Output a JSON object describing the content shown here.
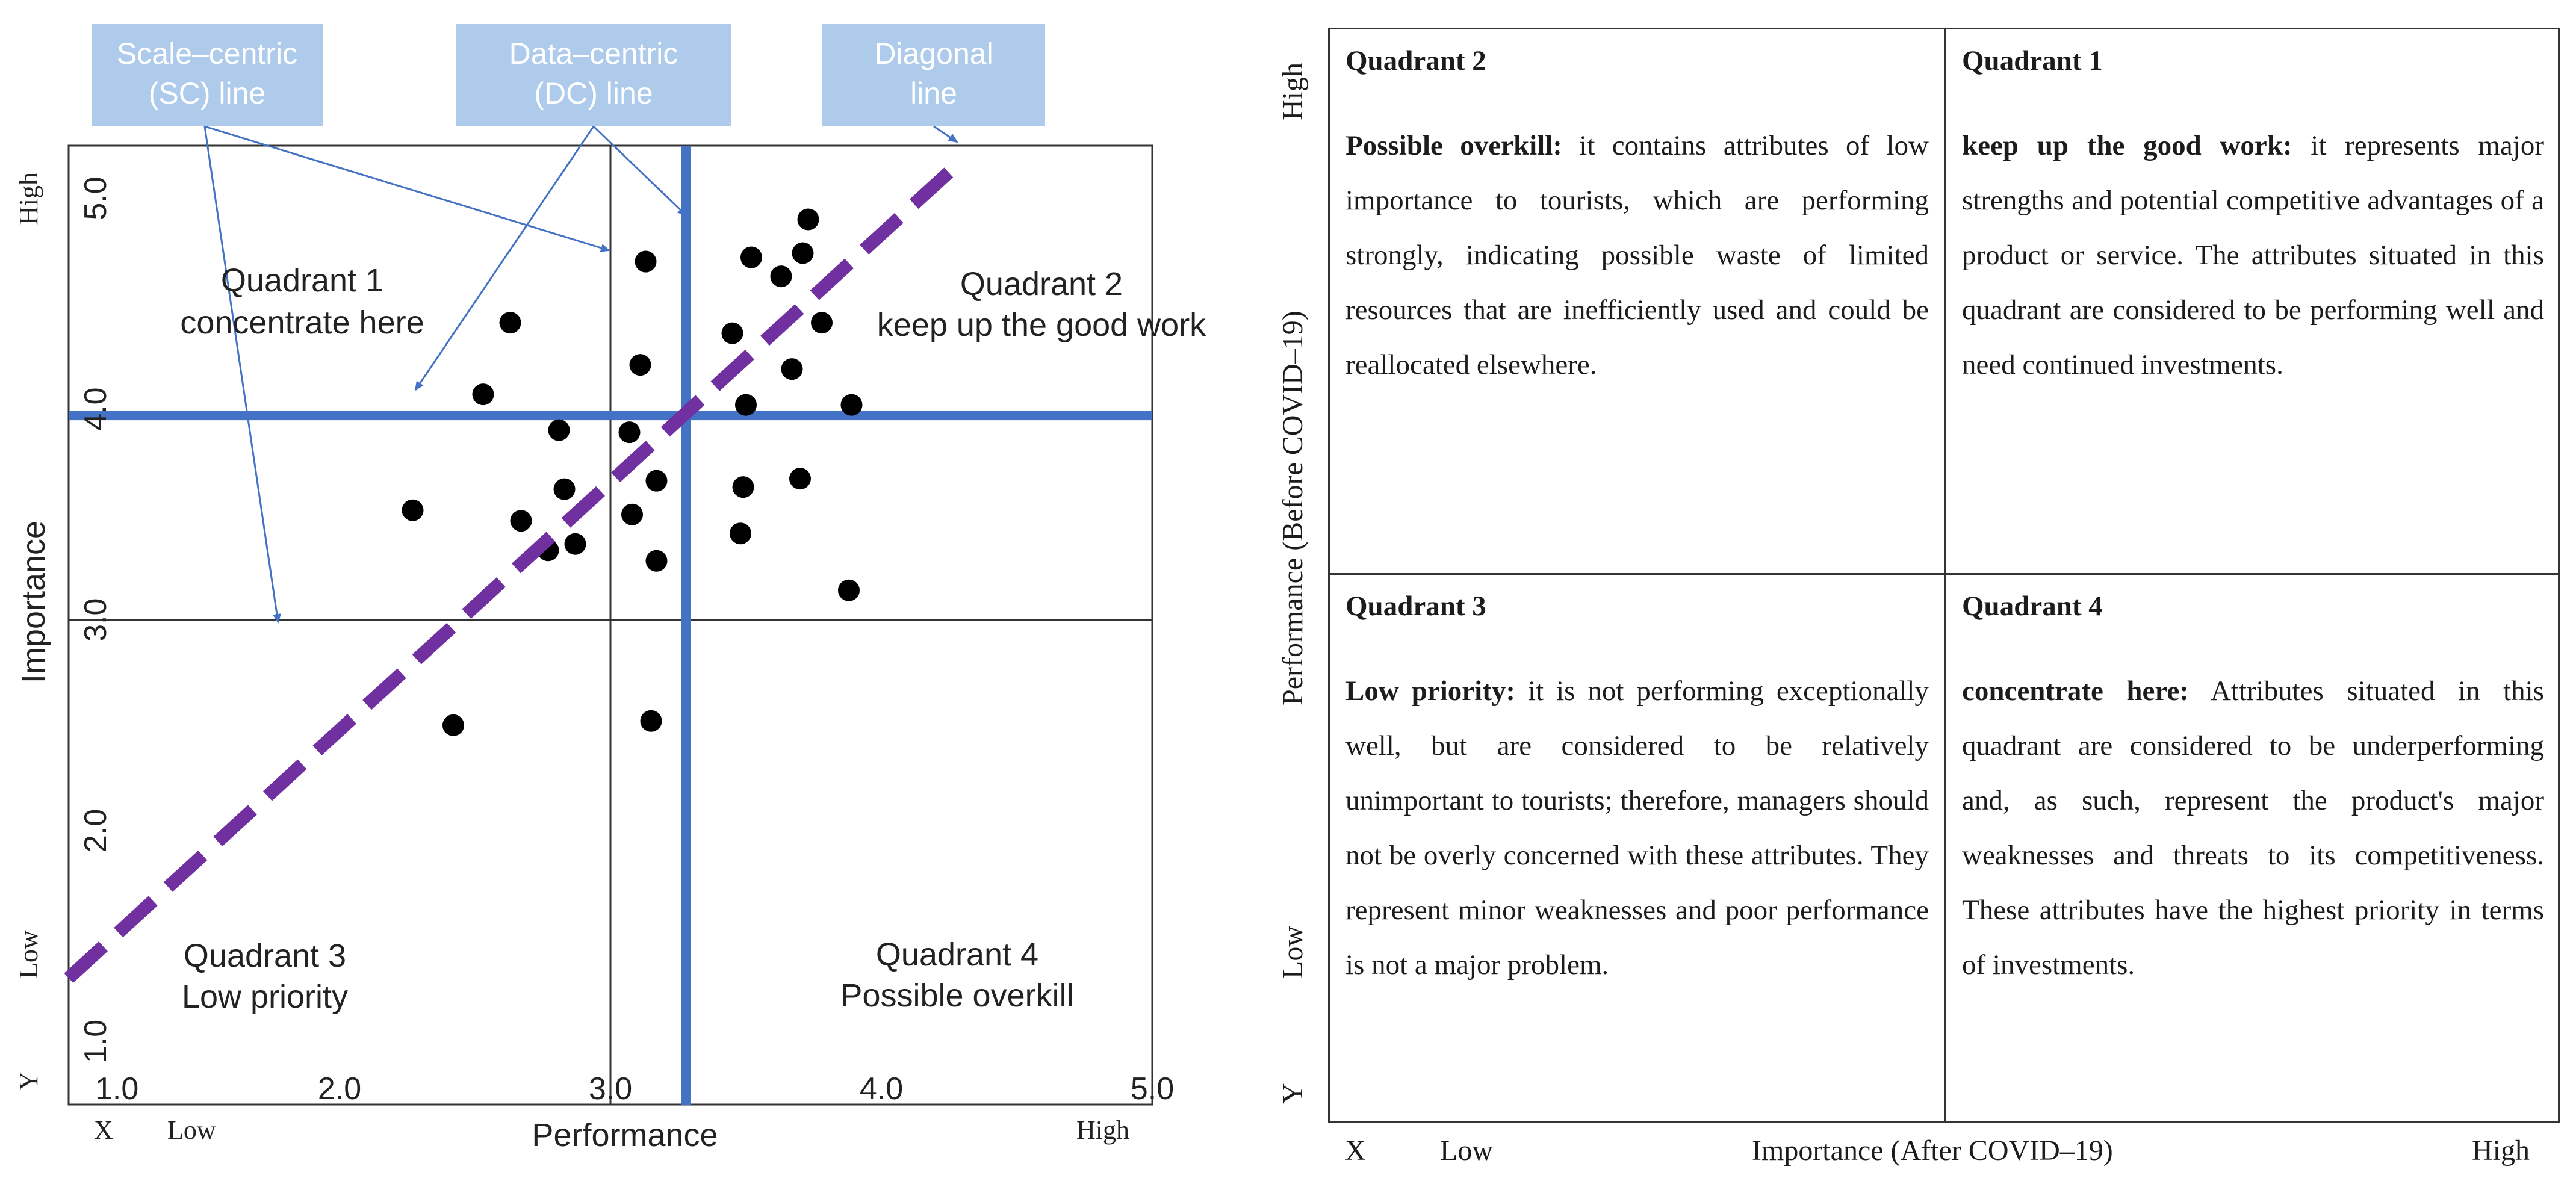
{
  "left_figure": {
    "callouts": {
      "sc_line": [
        "Scale–centric",
        "(SC) line"
      ],
      "dc_line": [
        "Data–centric",
        "(DC) line"
      ],
      "diagonal": [
        "Diagonal",
        "line"
      ]
    },
    "callout_color": "#aecbeb",
    "quadrants": {
      "q1": [
        "Quadrant 1",
        "concentrate here"
      ],
      "q2": [
        "Quadrant 2",
        "keep up the good work"
      ],
      "q3": [
        "Quadrant 3",
        "Low priority"
      ],
      "q4": [
        "Quadrant 4",
        "Possible overkill"
      ]
    },
    "y_axis": {
      "title": "Importance",
      "high": "High",
      "low": "Low",
      "letter": "Y"
    },
    "x_axis": {
      "title": "Performance",
      "high": "High",
      "low": "Low",
      "letter": "X"
    },
    "line_colors": {
      "dc": "#4472c4",
      "diagonal": "#7030a0",
      "sc": "#333333"
    }
  },
  "chart_data": {
    "type": "scatter",
    "title": "",
    "xlabel": "Performance",
    "ylabel": "Importance",
    "xlim": [
      1.0,
      5.0
    ],
    "ylim": [
      0.7,
      5.25
    ],
    "xticks": [
      "1.0",
      "2.0",
      "3.0",
      "4.0",
      "5.0"
    ],
    "yticks": [
      "1.0",
      "2.0",
      "3.0",
      "4.0",
      "5.0"
    ],
    "scale_centric": {
      "x": 3.0,
      "y": 3.0
    },
    "data_centric": {
      "x": 3.28,
      "y": 3.97
    },
    "diagonal": {
      "from": [
        1.0,
        1.3
      ],
      "to": [
        4.28,
        5.16
      ]
    },
    "points": [
      {
        "x": 2.27,
        "y": 3.52
      },
      {
        "x": 2.42,
        "y": 2.5
      },
      {
        "x": 2.53,
        "y": 4.07
      },
      {
        "x": 2.67,
        "y": 3.47
      },
      {
        "x": 2.63,
        "y": 4.41
      },
      {
        "x": 2.77,
        "y": 3.33
      },
      {
        "x": 2.81,
        "y": 3.9
      },
      {
        "x": 2.83,
        "y": 3.62
      },
      {
        "x": 2.87,
        "y": 3.36
      },
      {
        "x": 3.07,
        "y": 3.89
      },
      {
        "x": 3.08,
        "y": 3.5
      },
      {
        "x": 3.11,
        "y": 4.21
      },
      {
        "x": 3.13,
        "y": 4.7
      },
      {
        "x": 3.15,
        "y": 2.52
      },
      {
        "x": 3.17,
        "y": 3.66
      },
      {
        "x": 3.17,
        "y": 3.28
      },
      {
        "x": 3.45,
        "y": 4.36
      },
      {
        "x": 3.48,
        "y": 3.41
      },
      {
        "x": 3.49,
        "y": 3.63
      },
      {
        "x": 3.5,
        "y": 4.02
      },
      {
        "x": 3.52,
        "y": 4.72
      },
      {
        "x": 3.63,
        "y": 4.63
      },
      {
        "x": 3.67,
        "y": 4.19
      },
      {
        "x": 3.7,
        "y": 3.67
      },
      {
        "x": 3.71,
        "y": 4.74
      },
      {
        "x": 3.73,
        "y": 4.9
      },
      {
        "x": 3.78,
        "y": 4.41
      },
      {
        "x": 3.88,
        "y": 3.14
      },
      {
        "x": 3.89,
        "y": 4.02
      }
    ]
  },
  "table": {
    "q2": {
      "title": "Quadrant 2",
      "lead": "Possible overkill:",
      "body": " it contains attributes of low importance to tourists, which are performing strongly, indicating possible waste of limited resources that are inefficiently used and could be reallocated elsewhere."
    },
    "q1": {
      "title": "Quadrant 1",
      "lead": "keep up the good work:",
      "body": " it represents major strengths and potential competitive advantages of a product or service. The attributes situated in this quadrant are considered to be performing well and need continued investments."
    },
    "q3": {
      "title": "Quadrant 3",
      "lead": "Low priority:",
      "body": " it is not performing exceptionally well, but are considered to be relatively unimportant to tourists; therefore, managers should not be overly concerned with these attributes. They represent minor weaknesses and poor performance is not a major problem."
    },
    "q4": {
      "title": "Quadrant 4",
      "lead": "concentrate here:",
      "body": " Attributes situated in this quadrant are considered to be underperforming and, as such, represent the product's major weaknesses and threats to its competitiveness. These attributes have the highest priority in terms of investments."
    },
    "y_axis": {
      "title": "Performance (Before COVID–19)",
      "high": "High",
      "low": "Low",
      "letter": "Y"
    },
    "x_axis": {
      "title": "Importance (After COVID–19)",
      "high": "High",
      "low": "Low",
      "letter": "X"
    }
  }
}
